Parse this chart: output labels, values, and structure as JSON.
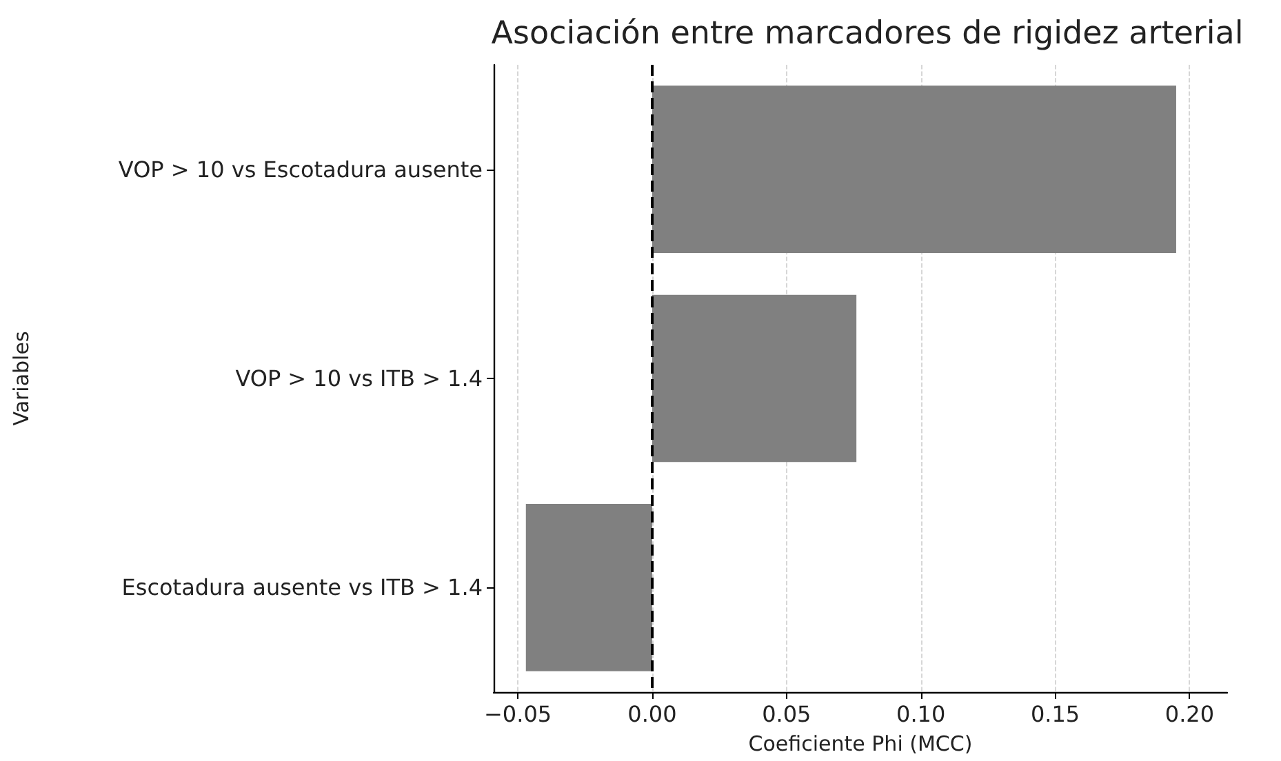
{
  "chart_data": {
    "type": "bar",
    "orientation": "horizontal",
    "title": "Asociación entre marcadores de rigidez arterial",
    "xlabel": "Coeficiente Phi (MCC)",
    "ylabel": "Variables",
    "categories": [
      "VOP > 10 vs Escotadura ausente",
      "VOP > 10 vs ITB > 1.4",
      "Escotadura ausente vs ITB > 1.4"
    ],
    "values": [
      0.195,
      0.076,
      -0.047
    ],
    "color": "#808080",
    "xlim": [
      -0.059,
      0.214
    ],
    "xticks": [
      {
        "value": -0.05,
        "label": "−0.05"
      },
      {
        "value": 0,
        "label": "0.00"
      },
      {
        "value": 0.05,
        "label": "0.05"
      },
      {
        "value": 0.1,
        "label": "0.10"
      },
      {
        "value": 0.15,
        "label": "0.15"
      },
      {
        "value": 0.2,
        "label": "0.20"
      }
    ],
    "grid": "x",
    "ref_lines": [
      {
        "axis": "x",
        "value": 0,
        "label": null,
        "color": "#000000",
        "line_style": "dashed"
      }
    ]
  }
}
